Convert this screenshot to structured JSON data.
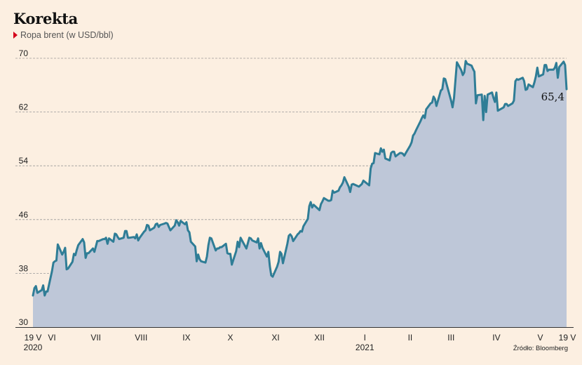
{
  "title": "Korekta",
  "subtitle": "Ropa brent (w USD/bbl)",
  "source": "Źródło: Bloomberg",
  "colors": {
    "background": "#fcefe1",
    "line": "#2f7d96",
    "area": "#bec7d8",
    "marker": "#d4001a",
    "grid": "#9a9a9a"
  },
  "chart_data": {
    "type": "area",
    "title": "Korekta",
    "subtitle": "Ropa brent (w USD/bbl)",
    "ylabel": "USD/bbl",
    "ylim": [
      30,
      70
    ],
    "yticks": [
      30,
      38,
      46,
      54,
      62,
      70
    ],
    "x_range": [
      "2020-05-19",
      "2021-05-19"
    ],
    "grid": true,
    "x_ticks": [
      {
        "label": "19 V",
        "date": "2020-05-19",
        "year": "2020"
      },
      {
        "label": "VI",
        "date": "2020-06-01"
      },
      {
        "label": "VII",
        "date": "2020-07-01"
      },
      {
        "label": "VIII",
        "date": "2020-08-01"
      },
      {
        "label": "IX",
        "date": "2020-09-01"
      },
      {
        "label": "X",
        "date": "2020-10-01"
      },
      {
        "label": "XI",
        "date": "2020-11-01"
      },
      {
        "label": "XII",
        "date": "2020-12-01"
      },
      {
        "label": "I",
        "date": "2021-01-01",
        "year": "2021"
      },
      {
        "label": "II",
        "date": "2021-02-01"
      },
      {
        "label": "III",
        "date": "2021-03-01"
      },
      {
        "label": "IV",
        "date": "2021-04-01"
      },
      {
        "label": "V",
        "date": "2021-05-01"
      },
      {
        "label": "19 V",
        "date": "2021-05-19"
      }
    ],
    "last_value_label": "65,4",
    "series": [
      {
        "points": [
          [
            "2020-05-19",
            34.7
          ],
          [
            "2020-05-20",
            35.8
          ],
          [
            "2020-05-21",
            36.1
          ],
          [
            "2020-05-22",
            35.1
          ],
          [
            "2020-05-25",
            35.5
          ],
          [
            "2020-05-26",
            36.2
          ],
          [
            "2020-05-27",
            34.7
          ],
          [
            "2020-05-28",
            35.3
          ],
          [
            "2020-05-29",
            35.3
          ],
          [
            "2020-06-01",
            38.3
          ],
          [
            "2020-06-02",
            39.6
          ],
          [
            "2020-06-03",
            39.8
          ],
          [
            "2020-06-04",
            39.9
          ],
          [
            "2020-06-05",
            42.3
          ],
          [
            "2020-06-08",
            40.8
          ],
          [
            "2020-06-09",
            41.2
          ],
          [
            "2020-06-10",
            41.8
          ],
          [
            "2020-06-11",
            38.6
          ],
          [
            "2020-06-12",
            38.7
          ],
          [
            "2020-06-15",
            39.7
          ],
          [
            "2020-06-16",
            40.9
          ],
          [
            "2020-06-17",
            40.7
          ],
          [
            "2020-06-18",
            41.5
          ],
          [
            "2020-06-19",
            42.2
          ],
          [
            "2020-06-22",
            43.1
          ],
          [
            "2020-06-23",
            42.6
          ],
          [
            "2020-06-24",
            40.3
          ],
          [
            "2020-06-25",
            41.0
          ],
          [
            "2020-06-26",
            41.0
          ],
          [
            "2020-06-29",
            41.7
          ],
          [
            "2020-06-30",
            41.2
          ],
          [
            "2020-07-01",
            42.0
          ],
          [
            "2020-07-02",
            42.8
          ],
          [
            "2020-07-03",
            42.8
          ],
          [
            "2020-07-06",
            43.1
          ],
          [
            "2020-07-07",
            43.1
          ],
          [
            "2020-07-08",
            43.3
          ],
          [
            "2020-07-09",
            42.4
          ],
          [
            "2020-07-10",
            43.2
          ],
          [
            "2020-07-13",
            42.7
          ],
          [
            "2020-07-14",
            43.9
          ],
          [
            "2020-07-15",
            43.8
          ],
          [
            "2020-07-16",
            43.4
          ],
          [
            "2020-07-17",
            43.1
          ],
          [
            "2020-07-20",
            43.3
          ],
          [
            "2020-07-21",
            44.3
          ],
          [
            "2020-07-22",
            44.3
          ],
          [
            "2020-07-23",
            43.3
          ],
          [
            "2020-07-24",
            43.3
          ],
          [
            "2020-07-27",
            43.4
          ],
          [
            "2020-07-28",
            43.2
          ],
          [
            "2020-07-29",
            43.8
          ],
          [
            "2020-07-30",
            42.9
          ],
          [
            "2020-07-31",
            43.3
          ],
          [
            "2020-08-03",
            44.2
          ],
          [
            "2020-08-04",
            44.4
          ],
          [
            "2020-08-05",
            45.2
          ],
          [
            "2020-08-06",
            45.1
          ],
          [
            "2020-08-07",
            44.4
          ],
          [
            "2020-08-10",
            44.8
          ],
          [
            "2020-08-11",
            45.3
          ],
          [
            "2020-08-12",
            45.4
          ],
          [
            "2020-08-13",
            44.9
          ],
          [
            "2020-08-14",
            45.2
          ],
          [
            "2020-08-17",
            45.4
          ],
          [
            "2020-08-18",
            45.5
          ],
          [
            "2020-08-19",
            45.4
          ],
          [
            "2020-08-20",
            44.9
          ],
          [
            "2020-08-21",
            44.4
          ],
          [
            "2020-08-24",
            45.1
          ],
          [
            "2020-08-25",
            45.9
          ],
          [
            "2020-08-26",
            45.6
          ],
          [
            "2020-08-27",
            45.1
          ],
          [
            "2020-08-28",
            45.8
          ],
          [
            "2020-08-31",
            45.3
          ],
          [
            "2020-09-01",
            45.6
          ],
          [
            "2020-09-02",
            44.4
          ],
          [
            "2020-09-03",
            44.1
          ],
          [
            "2020-09-04",
            42.7
          ],
          [
            "2020-09-07",
            42.0
          ],
          [
            "2020-09-08",
            39.8
          ],
          [
            "2020-09-09",
            40.8
          ],
          [
            "2020-09-10",
            40.1
          ],
          [
            "2020-09-11",
            39.8
          ],
          [
            "2020-09-14",
            39.6
          ],
          [
            "2020-09-15",
            40.5
          ],
          [
            "2020-09-16",
            42.2
          ],
          [
            "2020-09-17",
            43.3
          ],
          [
            "2020-09-18",
            43.2
          ],
          [
            "2020-09-21",
            41.4
          ],
          [
            "2020-09-22",
            41.7
          ],
          [
            "2020-09-23",
            41.7
          ],
          [
            "2020-09-24",
            41.9
          ],
          [
            "2020-09-25",
            41.9
          ],
          [
            "2020-09-28",
            42.4
          ],
          [
            "2020-09-29",
            41.0
          ],
          [
            "2020-09-30",
            40.9
          ],
          [
            "2020-10-01",
            40.9
          ],
          [
            "2020-10-02",
            39.3
          ],
          [
            "2020-10-05",
            41.3
          ],
          [
            "2020-10-06",
            42.7
          ],
          [
            "2020-10-07",
            41.9
          ],
          [
            "2020-10-08",
            43.3
          ],
          [
            "2020-10-09",
            42.9
          ],
          [
            "2020-10-12",
            41.7
          ],
          [
            "2020-10-13",
            42.5
          ],
          [
            "2020-10-14",
            43.3
          ],
          [
            "2020-10-15",
            43.2
          ],
          [
            "2020-10-16",
            42.9
          ],
          [
            "2020-10-19",
            42.6
          ],
          [
            "2020-10-20",
            43.2
          ],
          [
            "2020-10-21",
            41.7
          ],
          [
            "2020-10-22",
            42.5
          ],
          [
            "2020-10-23",
            41.8
          ],
          [
            "2020-10-26",
            40.5
          ],
          [
            "2020-10-27",
            41.2
          ],
          [
            "2020-10-28",
            39.1
          ],
          [
            "2020-10-29",
            37.7
          ],
          [
            "2020-10-30",
            37.5
          ],
          [
            "2020-11-02",
            39.0
          ],
          [
            "2020-11-03",
            39.7
          ],
          [
            "2020-11-04",
            41.2
          ],
          [
            "2020-11-05",
            40.9
          ],
          [
            "2020-11-06",
            39.5
          ],
          [
            "2020-11-09",
            42.4
          ],
          [
            "2020-11-10",
            43.6
          ],
          [
            "2020-11-11",
            43.8
          ],
          [
            "2020-11-12",
            43.5
          ],
          [
            "2020-11-13",
            42.8
          ],
          [
            "2020-11-16",
            43.8
          ],
          [
            "2020-11-17",
            44.0
          ],
          [
            "2020-11-18",
            44.3
          ],
          [
            "2020-11-19",
            44.2
          ],
          [
            "2020-11-20",
            45.0
          ],
          [
            "2020-11-23",
            46.1
          ],
          [
            "2020-11-24",
            48.0
          ],
          [
            "2020-11-25",
            48.6
          ],
          [
            "2020-11-26",
            47.8
          ],
          [
            "2020-11-27",
            48.2
          ],
          [
            "2020-11-30",
            47.6
          ],
          [
            "2020-12-01",
            47.4
          ],
          [
            "2020-12-02",
            48.3
          ],
          [
            "2020-12-03",
            48.7
          ],
          [
            "2020-12-04",
            49.2
          ],
          [
            "2020-12-07",
            48.8
          ],
          [
            "2020-12-08",
            48.8
          ],
          [
            "2020-12-09",
            48.9
          ],
          [
            "2020-12-10",
            50.3
          ],
          [
            "2020-12-11",
            50.0
          ],
          [
            "2020-12-14",
            50.3
          ],
          [
            "2020-12-15",
            50.8
          ],
          [
            "2020-12-16",
            51.1
          ],
          [
            "2020-12-17",
            51.5
          ],
          [
            "2020-12-18",
            52.3
          ],
          [
            "2020-12-21",
            50.9
          ],
          [
            "2020-12-22",
            50.1
          ],
          [
            "2020-12-23",
            51.2
          ],
          [
            "2020-12-24",
            51.3
          ],
          [
            "2020-12-28",
            50.9
          ],
          [
            "2020-12-29",
            51.1
          ],
          [
            "2020-12-30",
            51.3
          ],
          [
            "2020-12-31",
            51.8
          ],
          [
            "2021-01-04",
            51.1
          ],
          [
            "2021-01-05",
            53.6
          ],
          [
            "2021-01-06",
            54.3
          ],
          [
            "2021-01-07",
            54.4
          ],
          [
            "2021-01-08",
            55.9
          ],
          [
            "2021-01-11",
            55.7
          ],
          [
            "2021-01-12",
            56.6
          ],
          [
            "2021-01-13",
            56.1
          ],
          [
            "2021-01-14",
            56.4
          ],
          [
            "2021-01-15",
            55.1
          ],
          [
            "2021-01-18",
            54.8
          ],
          [
            "2021-01-19",
            55.9
          ],
          [
            "2021-01-20",
            56.1
          ],
          [
            "2021-01-21",
            56.1
          ],
          [
            "2021-01-22",
            55.4
          ],
          [
            "2021-01-25",
            55.9
          ],
          [
            "2021-01-26",
            55.9
          ],
          [
            "2021-01-27",
            55.8
          ],
          [
            "2021-01-28",
            55.5
          ],
          [
            "2021-01-29",
            55.9
          ],
          [
            "2021-02-01",
            57.0
          ],
          [
            "2021-02-02",
            57.5
          ],
          [
            "2021-02-03",
            58.5
          ],
          [
            "2021-02-04",
            58.8
          ],
          [
            "2021-02-05",
            59.3
          ],
          [
            "2021-02-08",
            60.6
          ],
          [
            "2021-02-09",
            61.1
          ],
          [
            "2021-02-10",
            61.5
          ],
          [
            "2021-02-11",
            61.1
          ],
          [
            "2021-02-12",
            62.4
          ],
          [
            "2021-02-15",
            63.3
          ],
          [
            "2021-02-16",
            63.4
          ],
          [
            "2021-02-17",
            64.3
          ],
          [
            "2021-02-18",
            63.9
          ],
          [
            "2021-02-19",
            62.9
          ],
          [
            "2021-02-22",
            65.2
          ],
          [
            "2021-02-23",
            65.4
          ],
          [
            "2021-02-24",
            67.0
          ],
          [
            "2021-02-25",
            66.9
          ],
          [
            "2021-02-26",
            66.1
          ],
          [
            "2021-03-01",
            63.7
          ],
          [
            "2021-03-02",
            62.7
          ],
          [
            "2021-03-03",
            64.1
          ],
          [
            "2021-03-04",
            66.7
          ],
          [
            "2021-03-05",
            69.4
          ],
          [
            "2021-03-08",
            68.2
          ],
          [
            "2021-03-09",
            67.5
          ],
          [
            "2021-03-10",
            67.9
          ],
          [
            "2021-03-11",
            69.6
          ],
          [
            "2021-03-12",
            69.2
          ],
          [
            "2021-03-15",
            68.9
          ],
          [
            "2021-03-16",
            68.4
          ],
          [
            "2021-03-17",
            68.0
          ],
          [
            "2021-03-18",
            63.3
          ],
          [
            "2021-03-19",
            64.5
          ],
          [
            "2021-03-22",
            64.6
          ],
          [
            "2021-03-23",
            60.8
          ],
          [
            "2021-03-24",
            64.4
          ],
          [
            "2021-03-25",
            62.0
          ],
          [
            "2021-03-26",
            64.6
          ],
          [
            "2021-03-29",
            64.9
          ],
          [
            "2021-03-30",
            64.1
          ],
          [
            "2021-03-31",
            63.5
          ],
          [
            "2021-04-01",
            64.9
          ],
          [
            "2021-04-02",
            62.2
          ],
          [
            "2021-04-06",
            62.7
          ],
          [
            "2021-04-07",
            63.2
          ],
          [
            "2021-04-08",
            63.2
          ],
          [
            "2021-04-09",
            62.9
          ],
          [
            "2021-04-12",
            63.3
          ],
          [
            "2021-04-13",
            63.7
          ],
          [
            "2021-04-14",
            66.6
          ],
          [
            "2021-04-15",
            66.9
          ],
          [
            "2021-04-16",
            66.8
          ],
          [
            "2021-04-19",
            67.1
          ],
          [
            "2021-04-20",
            66.6
          ],
          [
            "2021-04-21",
            65.3
          ],
          [
            "2021-04-22",
            65.4
          ],
          [
            "2021-04-23",
            66.1
          ],
          [
            "2021-04-26",
            65.7
          ],
          [
            "2021-04-27",
            66.4
          ],
          [
            "2021-04-28",
            67.3
          ],
          [
            "2021-04-29",
            68.6
          ],
          [
            "2021-04-30",
            67.3
          ],
          [
            "2021-05-03",
            67.6
          ],
          [
            "2021-05-04",
            69.0
          ],
          [
            "2021-05-05",
            69.0
          ],
          [
            "2021-05-06",
            68.1
          ],
          [
            "2021-05-07",
            68.3
          ],
          [
            "2021-05-10",
            68.3
          ],
          [
            "2021-05-11",
            68.6
          ],
          [
            "2021-05-12",
            69.3
          ],
          [
            "2021-05-13",
            67.1
          ],
          [
            "2021-05-14",
            68.7
          ],
          [
            "2021-05-17",
            69.5
          ],
          [
            "2021-05-18",
            69.0
          ],
          [
            "2021-05-19",
            65.4
          ]
        ]
      }
    ]
  }
}
